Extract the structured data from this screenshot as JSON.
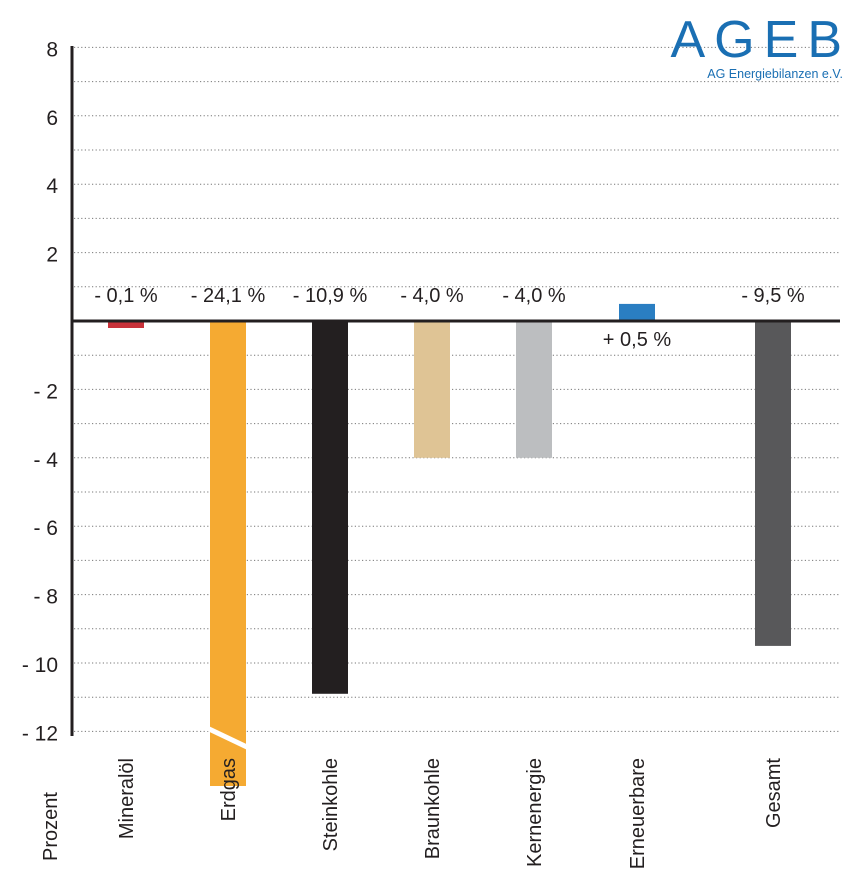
{
  "logo": {
    "name": "AGEB",
    "subtitle": "AG Energiebilanzen e.V.",
    "color": "#1a6fb3"
  },
  "chart_data": {
    "type": "bar",
    "ylabel": "Prozent",
    "ylim": [
      -13.2,
      8.5
    ],
    "yticks": [
      8,
      6,
      4,
      2,
      -2,
      -4,
      -6,
      -8,
      -10,
      -12
    ],
    "ytick_labels": [
      "8",
      "6",
      "4",
      "2",
      "- 2",
      "- 4",
      "- 6",
      "- 8",
      "- 10",
      "- 12"
    ],
    "grid": true,
    "categories": [
      "Mineralöl",
      "Erdgas",
      "Steinkohle",
      "Braunkohle",
      "Kernenergie",
      "Erneuerbare",
      "Gesamt"
    ],
    "values": [
      -0.1,
      -24.1,
      -10.9,
      -4.0,
      -4.0,
      0.5,
      -9.5
    ],
    "data_labels": [
      "- 0,1 %",
      "- 24,1 %",
      "- 10,9 %",
      "- 4,0 %",
      "- 4,0 %",
      "+ 0,5 %",
      "- 9,5 %"
    ],
    "colors": [
      "#c8323a",
      "#f5aa32",
      "#231f20",
      "#dfc495",
      "#bcbec0",
      "#2a7ec2",
      "#58585a"
    ],
    "axis_break": {
      "category": "Erdgas"
    }
  }
}
